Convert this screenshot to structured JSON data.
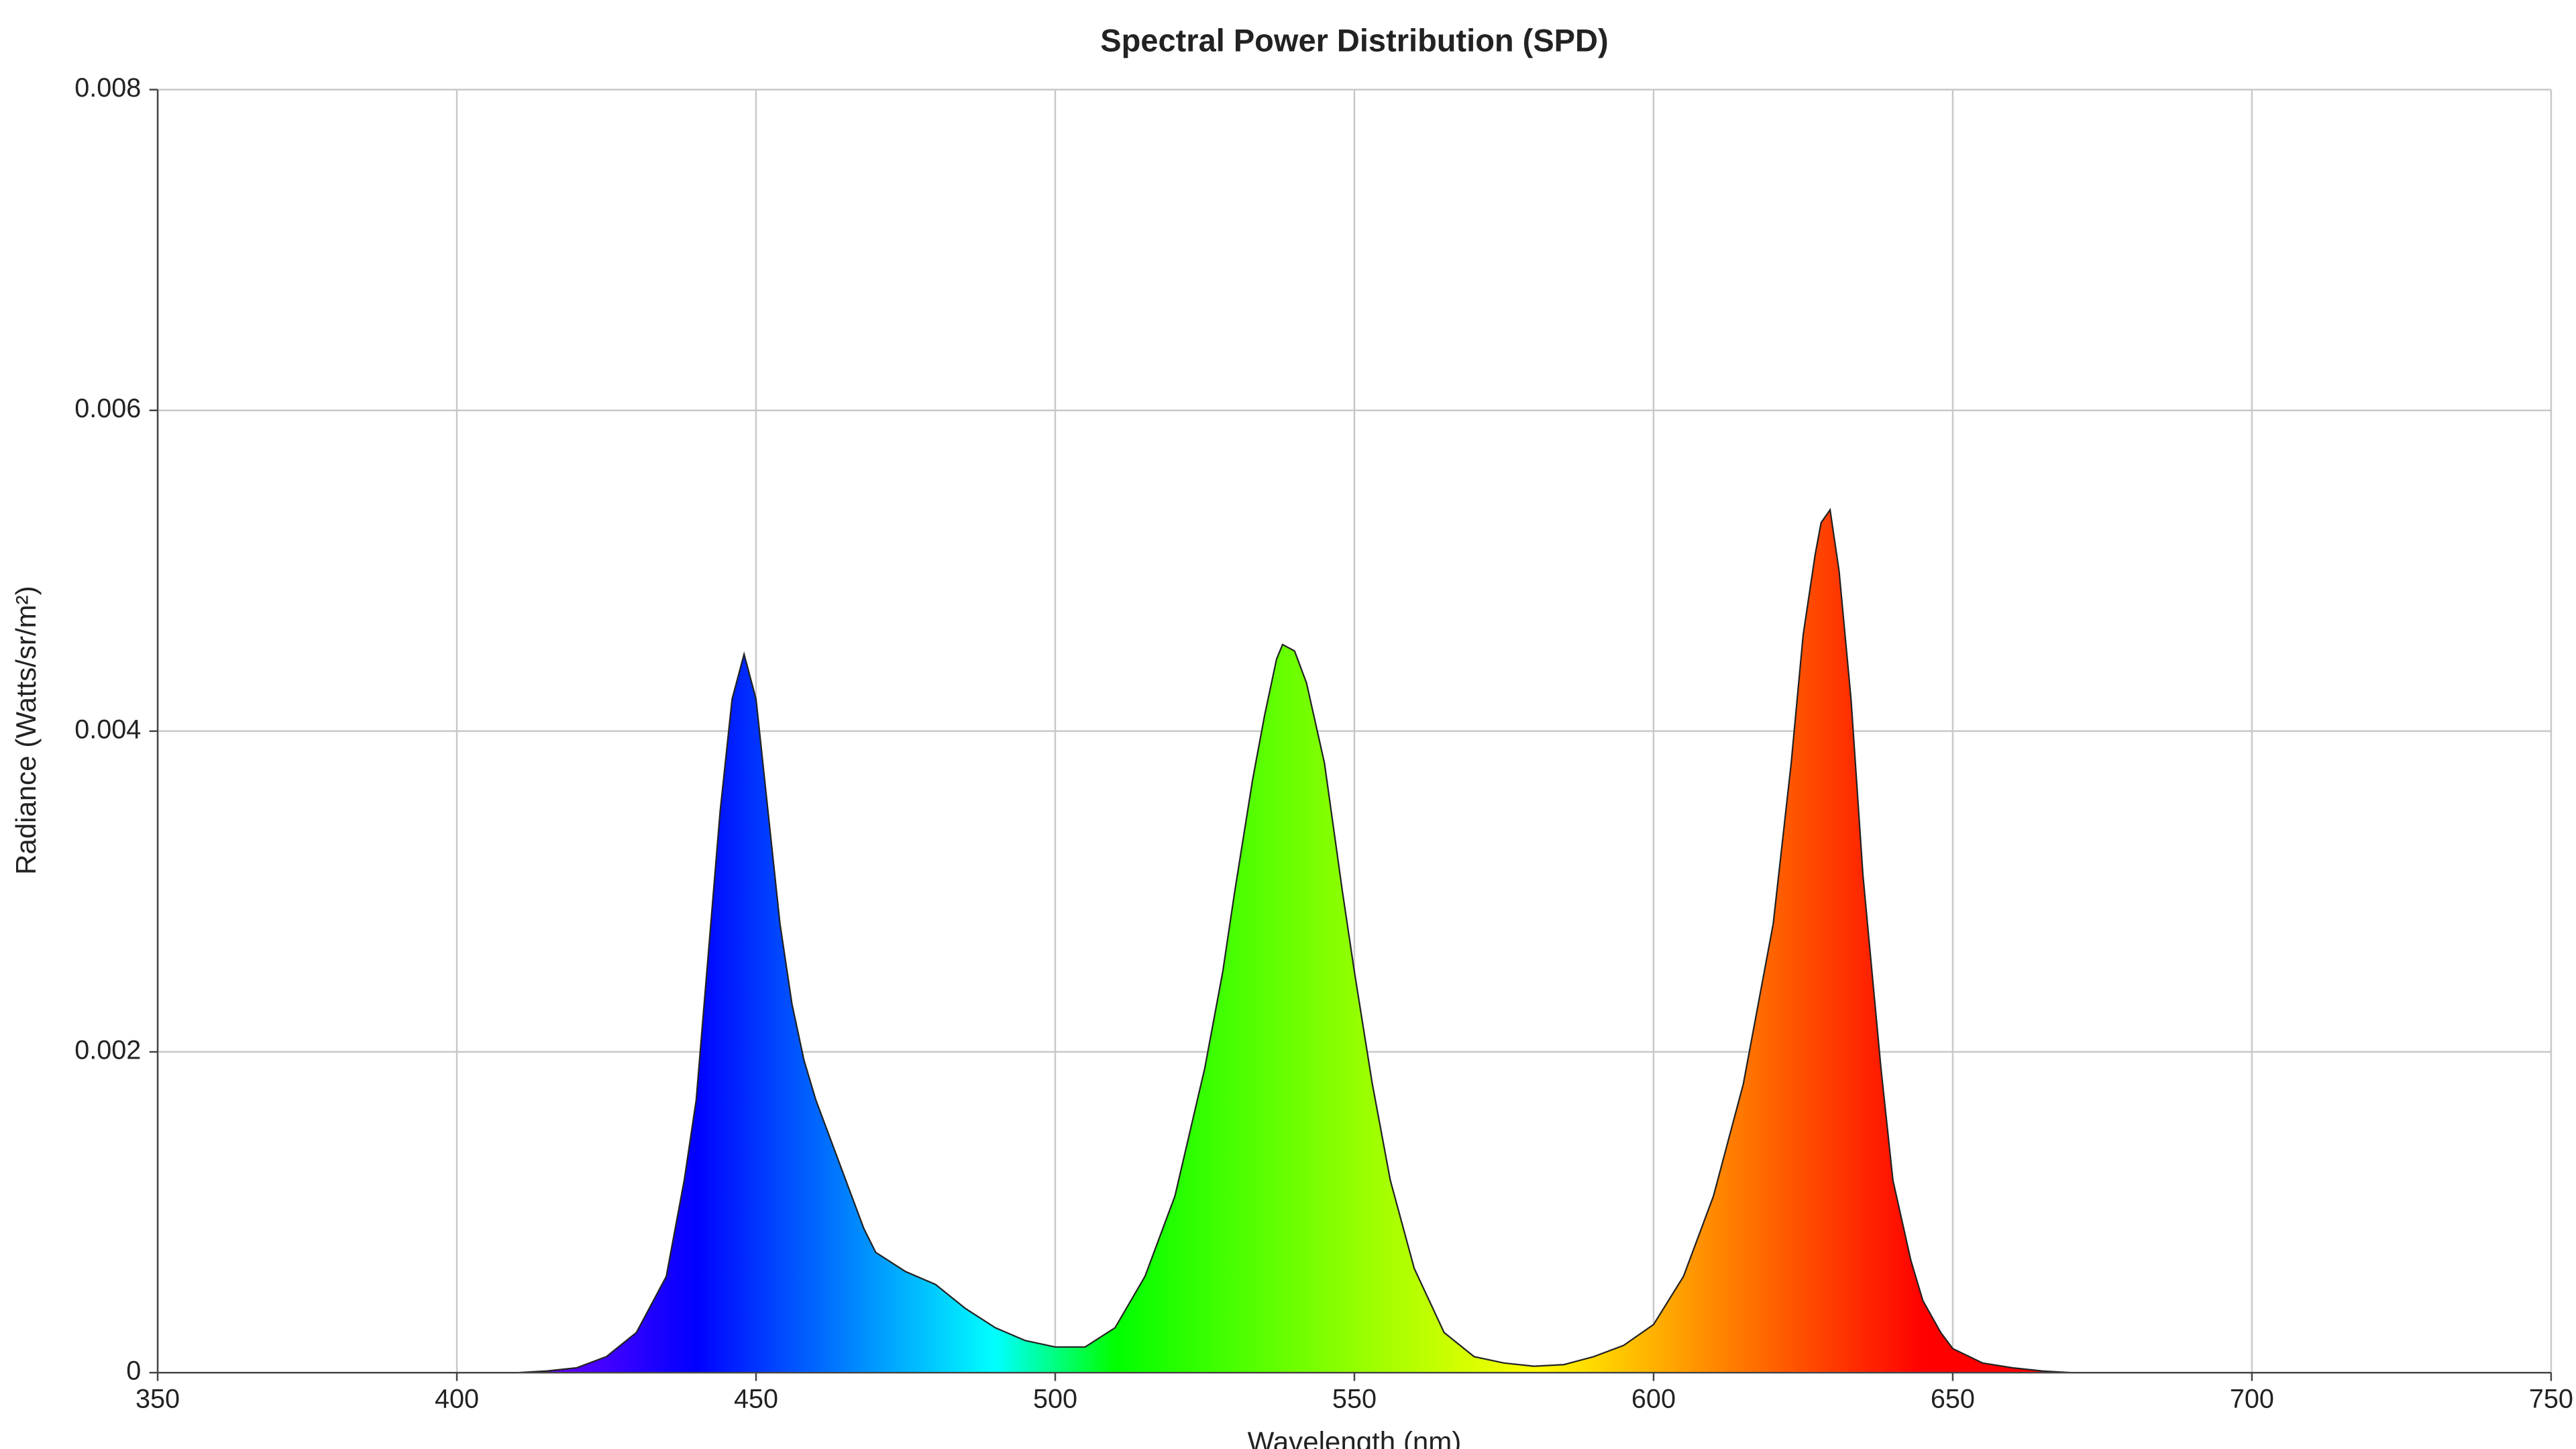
{
  "chart_data": {
    "type": "area",
    "title": "Spectral Power Distribution (SPD)",
    "x_label": "Wavelength (nm)",
    "y_label": "Radiance (Watts/sr/m²)",
    "x": [
      350,
      400,
      410,
      415,
      420,
      425,
      430,
      435,
      438,
      440,
      442,
      444,
      446,
      448,
      450,
      452,
      454,
      456,
      458,
      460,
      465,
      468,
      470,
      475,
      480,
      485,
      490,
      495,
      500,
      505,
      510,
      515,
      520,
      525,
      528,
      530,
      533,
      535,
      537,
      538,
      540,
      542,
      545,
      548,
      550,
      553,
      556,
      560,
      565,
      570,
      575,
      580,
      585,
      590,
      595,
      600,
      605,
      610,
      615,
      620,
      623,
      625,
      627,
      628,
      629.5,
      631,
      633,
      635,
      638,
      640,
      643,
      645,
      648,
      650,
      655,
      660,
      665,
      670,
      700,
      750
    ],
    "values": [
      0,
      0,
      0,
      1e-05,
      3e-05,
      0.0001,
      0.00025,
      0.0006,
      0.0012,
      0.0017,
      0.0026,
      0.0035,
      0.0042,
      0.00448,
      0.0042,
      0.0035,
      0.0028,
      0.0023,
      0.00195,
      0.0017,
      0.0012,
      0.0009,
      0.00075,
      0.00063,
      0.00055,
      0.0004,
      0.00028,
      0.0002,
      0.00016,
      0.00016,
      0.00028,
      0.0006,
      0.0011,
      0.0019,
      0.0025,
      0.003,
      0.0037,
      0.0041,
      0.00445,
      0.00454,
      0.0045,
      0.0043,
      0.0038,
      0.003,
      0.0025,
      0.0018,
      0.0012,
      0.00065,
      0.00025,
      0.0001,
      6e-05,
      4e-05,
      5e-05,
      0.0001,
      0.00017,
      0.0003,
      0.0006,
      0.0011,
      0.0018,
      0.0028,
      0.0038,
      0.0046,
      0.0051,
      0.0053,
      0.00538,
      0.005,
      0.0042,
      0.0031,
      0.0019,
      0.0012,
      0.0007,
      0.00045,
      0.00025,
      0.00015,
      6e-05,
      3e-05,
      1e-05,
      0,
      0,
      0
    ],
    "xlim": [
      350,
      750
    ],
    "xticks": [
      350,
      400,
      450,
      500,
      550,
      600,
      650,
      700,
      750
    ],
    "ylim": [
      0,
      0.008
    ],
    "yticks": [
      0,
      0.002,
      0.004,
      0.006,
      0.008
    ],
    "grid": true,
    "color": "spectral"
  }
}
